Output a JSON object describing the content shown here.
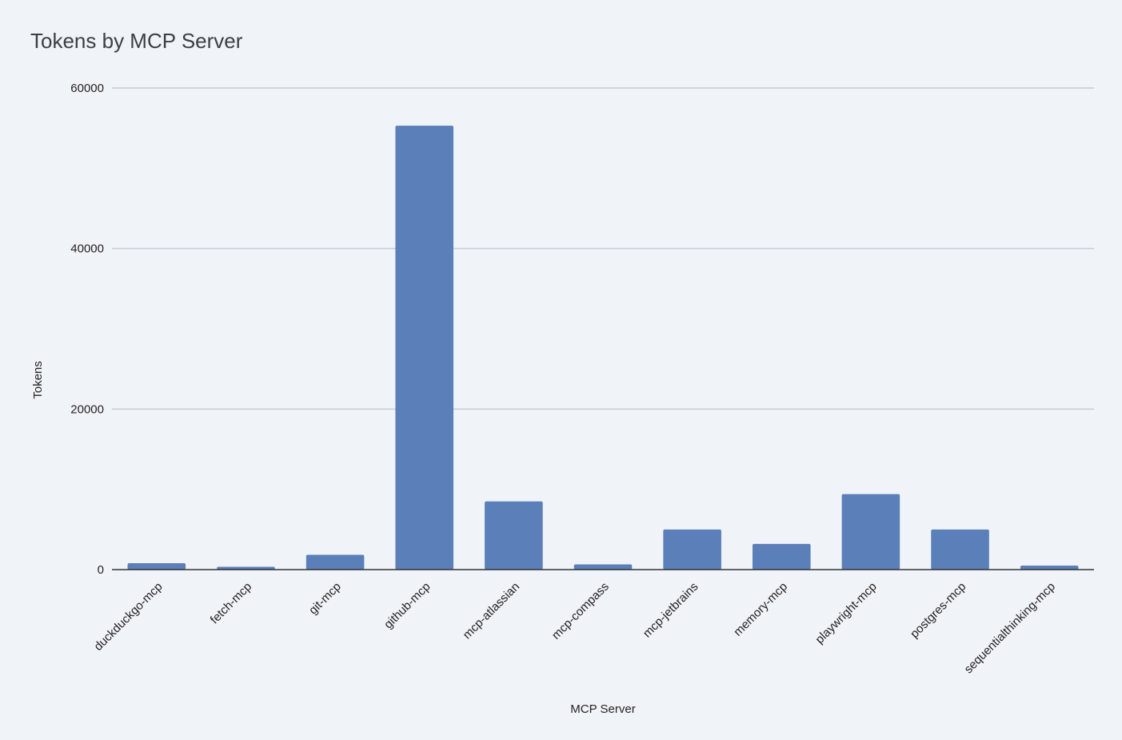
{
  "chart_data": {
    "type": "bar",
    "title": "Tokens by MCP Server",
    "xlabel": "MCP Server",
    "ylabel": "Tokens",
    "ylim": [
      0,
      60000
    ],
    "yticks": [
      0,
      20000,
      40000,
      60000
    ],
    "grid": true,
    "legend": "none",
    "bar_color": "#5b7fb8",
    "categories": [
      "duckduckgo-mcp",
      "fetch-mcp",
      "git-mcp",
      "github-mcp",
      "mcp-atlassian",
      "mcp-compass",
      "mcp-jetbrains",
      "memory-mcp",
      "playwright-mcp",
      "postgres-mcp",
      "sequentialthinking-mcp"
    ],
    "values": [
      800,
      350,
      1850,
      55300,
      8500,
      650,
      5000,
      3200,
      9400,
      5000,
      500
    ]
  }
}
